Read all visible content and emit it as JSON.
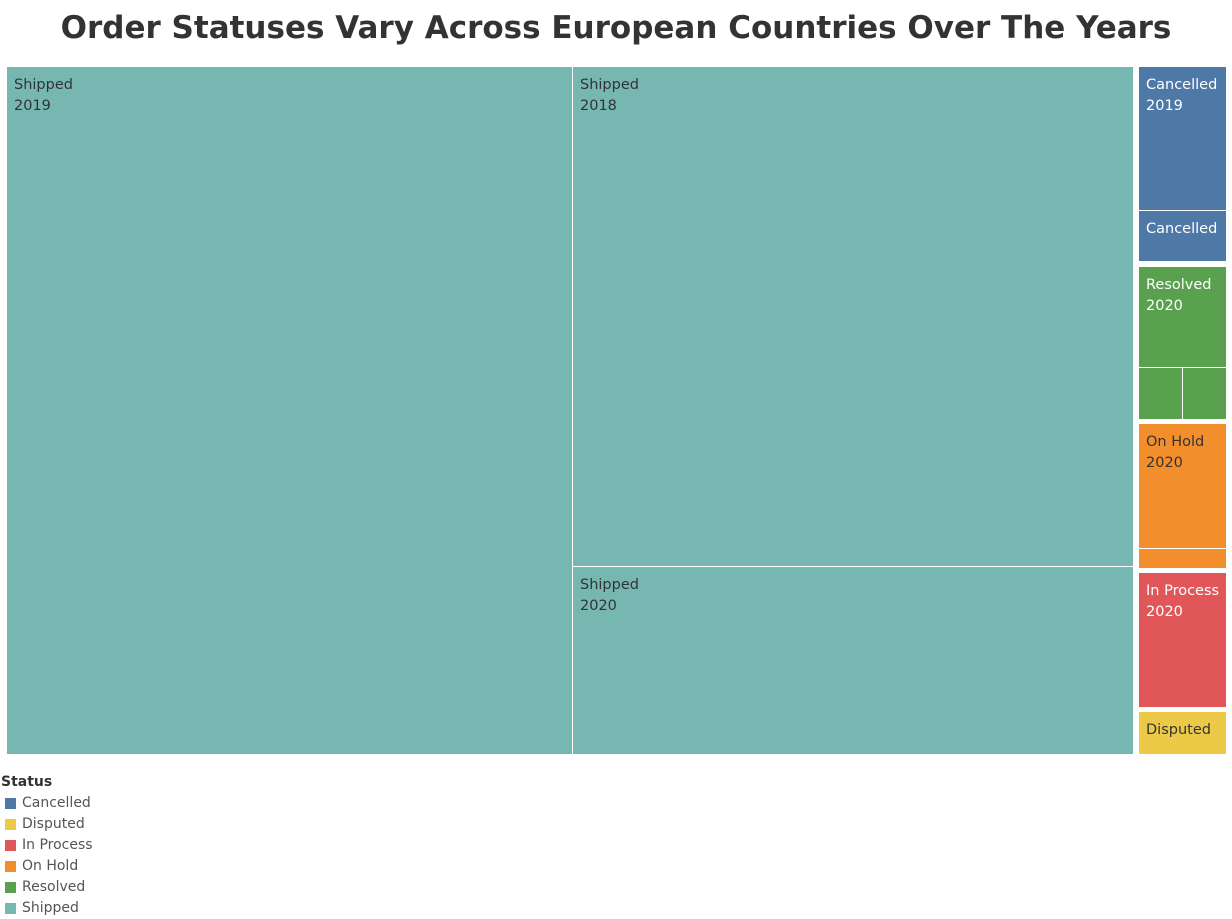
{
  "title": "Order Statuses Vary Across European Countries Over The Years",
  "chart_data": {
    "type": "treemap",
    "title": "Order Statuses Vary Across European Countries Over The Years",
    "tiles": [
      {
        "status": "Shipped",
        "year": "2019",
        "label_lines": [
          "Shipped",
          "2019"
        ]
      },
      {
        "status": "Shipped",
        "year": "2018",
        "label_lines": [
          "Shipped",
          "2018"
        ]
      },
      {
        "status": "Shipped",
        "year": "2020",
        "label_lines": [
          "Shipped",
          "2020"
        ]
      },
      {
        "status": "Cancelled",
        "year": "2019",
        "label_lines": [
          "Cancelled",
          "2019"
        ]
      },
      {
        "status": "Cancelled",
        "year": "",
        "label_lines": [
          "Cancelled"
        ]
      },
      {
        "status": "Resolved",
        "year": "2020",
        "label_lines": [
          "Resolved",
          "2020"
        ]
      },
      {
        "status": "Resolved",
        "year": "",
        "label_lines": []
      },
      {
        "status": "Resolved",
        "year": "",
        "label_lines": []
      },
      {
        "status": "On Hold",
        "year": "2020",
        "label_lines": [
          "On Hold",
          "2020"
        ]
      },
      {
        "status": "On Hold",
        "year": "",
        "label_lines": []
      },
      {
        "status": "In Process",
        "year": "2020",
        "label_lines": [
          "In Process",
          "2020"
        ]
      },
      {
        "status": "Disputed",
        "year": "",
        "label_lines": [
          "Disputed"
        ]
      }
    ],
    "legend": {
      "title": "Status",
      "placement": "bottom-left",
      "items": [
        {
          "label": "Cancelled",
          "color": "#4e79a7"
        },
        {
          "label": "Disputed",
          "color": "#edc948"
        },
        {
          "label": "In Process",
          "color": "#e15759"
        },
        {
          "label": "On Hold",
          "color": "#f28e2b"
        },
        {
          "label": "Resolved",
          "color": "#59a14f"
        },
        {
          "label": "Shipped",
          "color": "#76b7b2"
        }
      ]
    },
    "label_colors": {
      "Shipped": "#333333",
      "Cancelled": "#ffffff",
      "Resolved": "#ffffff",
      "On Hold": "#333333",
      "In Process": "#ffffff",
      "Disputed": "#333333"
    }
  }
}
